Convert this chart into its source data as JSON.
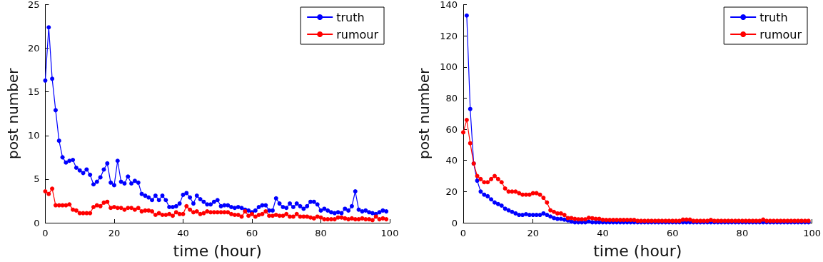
{
  "chart_data": [
    {
      "type": "line",
      "xlabel": "time (hour)",
      "ylabel": "post number",
      "xlim": [
        0,
        100
      ],
      "xticks": [
        0,
        20,
        40,
        60,
        80,
        100
      ],
      "ylim": [
        0,
        25
      ],
      "yticks": [
        0,
        5,
        10,
        15,
        20,
        25
      ],
      "legend": "top right",
      "marker": "circle",
      "line_style": "solid",
      "grid": false,
      "x": [
        0,
        1,
        2,
        3,
        4,
        5,
        6,
        7,
        8,
        9,
        10,
        11,
        12,
        13,
        14,
        15,
        16,
        17,
        18,
        19,
        20,
        21,
        22,
        23,
        24,
        25,
        26,
        27,
        28,
        29,
        30,
        31,
        32,
        33,
        34,
        35,
        36,
        37,
        38,
        39,
        40,
        41,
        42,
        43,
        44,
        45,
        46,
        47,
        48,
        49,
        50,
        51,
        52,
        53,
        54,
        55,
        56,
        57,
        58,
        59,
        60,
        61,
        62,
        63,
        64,
        65,
        66,
        67,
        68,
        69,
        70,
        71,
        72,
        73,
        74,
        75,
        76,
        77,
        78,
        79,
        80,
        81,
        82,
        83,
        84,
        85,
        86,
        87,
        88,
        89,
        90,
        91,
        92,
        93,
        94,
        95,
        96,
        97,
        98,
        99
      ],
      "series": [
        {
          "name": "truth",
          "color": "#0000ff",
          "values": [
            16.3,
            22.4,
            16.5,
            12.9,
            9.4,
            7.5,
            6.9,
            7.1,
            7.2,
            6.3,
            6.0,
            5.7,
            6.1,
            5.5,
            4.4,
            4.7,
            5.2,
            6.1,
            6.8,
            4.6,
            4.3,
            7.1,
            4.7,
            4.5,
            5.3,
            4.5,
            4.8,
            4.6,
            3.3,
            3.1,
            2.9,
            2.6,
            3.1,
            2.6,
            3.1,
            2.6,
            1.8,
            1.8,
            1.9,
            2.2,
            3.2,
            3.4,
            2.9,
            2.2,
            3.1,
            2.7,
            2.4,
            2.1,
            2.1,
            2.4,
            2.6,
            1.9,
            2.0,
            2.0,
            1.8,
            1.7,
            1.8,
            1.7,
            1.5,
            1.4,
            1.2,
            1.4,
            1.8,
            2.0,
            2.0,
            1.4,
            1.4,
            2.8,
            2.2,
            1.8,
            1.7,
            2.2,
            1.8,
            2.2,
            1.9,
            1.6,
            1.9,
            2.4,
            2.4,
            2.1,
            1.4,
            1.6,
            1.4,
            1.2,
            1.1,
            1.2,
            1.1,
            1.6,
            1.4,
            1.9,
            3.6,
            1.5,
            1.3,
            1.4,
            1.2,
            1.1,
            1.0,
            1.2,
            1.4,
            1.3
          ]
        },
        {
          "name": "rumour",
          "color": "#ff0000",
          "values": [
            3.6,
            3.3,
            3.9,
            2.0,
            2.0,
            2.0,
            2.0,
            2.1,
            1.5,
            1.4,
            1.1,
            1.1,
            1.1,
            1.1,
            1.8,
            2.0,
            1.9,
            2.3,
            2.4,
            1.7,
            1.8,
            1.7,
            1.7,
            1.5,
            1.7,
            1.7,
            1.5,
            1.7,
            1.3,
            1.4,
            1.4,
            1.3,
            0.9,
            1.1,
            0.9,
            0.9,
            1.0,
            0.8,
            1.2,
            1.0,
            1.0,
            1.9,
            1.5,
            1.2,
            1.3,
            1.0,
            1.1,
            1.3,
            1.2,
            1.2,
            1.2,
            1.2,
            1.2,
            1.2,
            1.0,
            0.9,
            0.9,
            0.7,
            1.3,
            0.8,
            1.0,
            0.7,
            0.9,
            1.0,
            1.3,
            0.8,
            0.8,
            0.9,
            0.8,
            0.8,
            1.0,
            0.7,
            0.7,
            1.0,
            0.7,
            0.7,
            0.7,
            0.6,
            0.5,
            0.7,
            0.6,
            0.4,
            0.4,
            0.4,
            0.4,
            0.6,
            0.6,
            0.5,
            0.4,
            0.5,
            0.4,
            0.4,
            0.5,
            0.4,
            0.4,
            0.3,
            0.7,
            0.4,
            0.5,
            0.4
          ]
        }
      ]
    },
    {
      "type": "line",
      "xlabel": "time (hour)",
      "ylabel": "post number",
      "xlim": [
        0,
        100
      ],
      "xticks": [
        0,
        20,
        40,
        60,
        80,
        100
      ],
      "ylim": [
        0,
        140
      ],
      "yticks": [
        0,
        20,
        40,
        60,
        80,
        100,
        120,
        140
      ],
      "legend": "top right",
      "marker": "circle",
      "line_style": "solid",
      "grid": false,
      "x": [
        0,
        1,
        2,
        3,
        4,
        5,
        6,
        7,
        8,
        9,
        10,
        11,
        12,
        13,
        14,
        15,
        16,
        17,
        18,
        19,
        20,
        21,
        22,
        23,
        24,
        25,
        26,
        27,
        28,
        29,
        30,
        31,
        32,
        33,
        34,
        35,
        36,
        37,
        38,
        39,
        40,
        41,
        42,
        43,
        44,
        45,
        46,
        47,
        48,
        49,
        50,
        51,
        52,
        53,
        54,
        55,
        56,
        57,
        58,
        59,
        60,
        61,
        62,
        63,
        64,
        65,
        66,
        67,
        68,
        69,
        70,
        71,
        72,
        73,
        74,
        75,
        76,
        77,
        78,
        79,
        80,
        81,
        82,
        83,
        84,
        85,
        86,
        87,
        88,
        89,
        90,
        91,
        92,
        93,
        94,
        95,
        96,
        97,
        98,
        99
      ],
      "series": [
        {
          "name": "truth",
          "color": "#0000ff",
          "values": [
            null,
            133,
            73,
            38,
            27,
            20,
            18,
            17,
            15,
            13,
            12,
            11,
            9,
            8,
            7,
            6,
            5,
            5,
            5.5,
            5,
            5,
            5,
            5,
            6,
            5,
            4,
            3,
            2.5,
            2.5,
            2,
            1.5,
            0.7,
            0.3,
            0.3,
            0.3,
            0.3,
            0.8,
            0.3,
            0.3,
            0.3,
            0.3,
            0.3,
            0.3,
            0.3,
            0.3,
            0.3,
            0.3,
            0.3,
            0.3,
            0.3,
            0.3,
            0.3,
            0.3,
            0.3,
            0.3,
            0.3,
            0.3,
            0.3,
            0.3,
            0.3,
            0.3,
            0.3,
            0.3,
            0.3,
            0.3,
            0.3,
            0.3,
            0.3,
            0.3,
            0.3,
            0.3,
            0.3,
            0.3,
            0.3,
            0.3,
            0.3,
            0.3,
            0.3,
            0.3,
            0.3,
            0.3,
            0.3,
            0.3,
            0.3,
            0.3,
            0.3,
            0.3,
            0.3,
            0.3,
            0.3,
            0.3,
            0.3,
            0.3,
            0.3,
            0.3,
            0.3,
            0.3,
            0.3,
            0.3,
            0.3
          ]
        },
        {
          "name": "rumour",
          "color": "#ff0000",
          "values": [
            58,
            66,
            51,
            38,
            30,
            28,
            26,
            26,
            28,
            30,
            28,
            26,
            22,
            20,
            20,
            20,
            19,
            18,
            18,
            18,
            19,
            19,
            18,
            16,
            13,
            8,
            7,
            6,
            6,
            5,
            3,
            3,
            2.5,
            2.2,
            2.2,
            2.2,
            3.2,
            2.9,
            2.5,
            2.5,
            1.9,
            1.8,
            1.8,
            1.8,
            1.8,
            1.8,
            1.8,
            1.8,
            1.8,
            1.8,
            1.2,
            1.2,
            1.2,
            1.2,
            1.2,
            1.2,
            1.2,
            1.2,
            1.2,
            1.2,
            1.2,
            1.2,
            1.2,
            2,
            2,
            2,
            1.2,
            1.2,
            1.2,
            1.2,
            1.2,
            1.8,
            1.2,
            1.2,
            1.2,
            1.2,
            1.2,
            1.2,
            1.2,
            1.2,
            1.2,
            1.2,
            1.2,
            1.2,
            1.2,
            1.2,
            2,
            1.2,
            1.2,
            1.2,
            1.2,
            1.2,
            1.2,
            1.2,
            1.2,
            1.2,
            1.2,
            1.2,
            1.2,
            1.2
          ]
        }
      ]
    }
  ]
}
